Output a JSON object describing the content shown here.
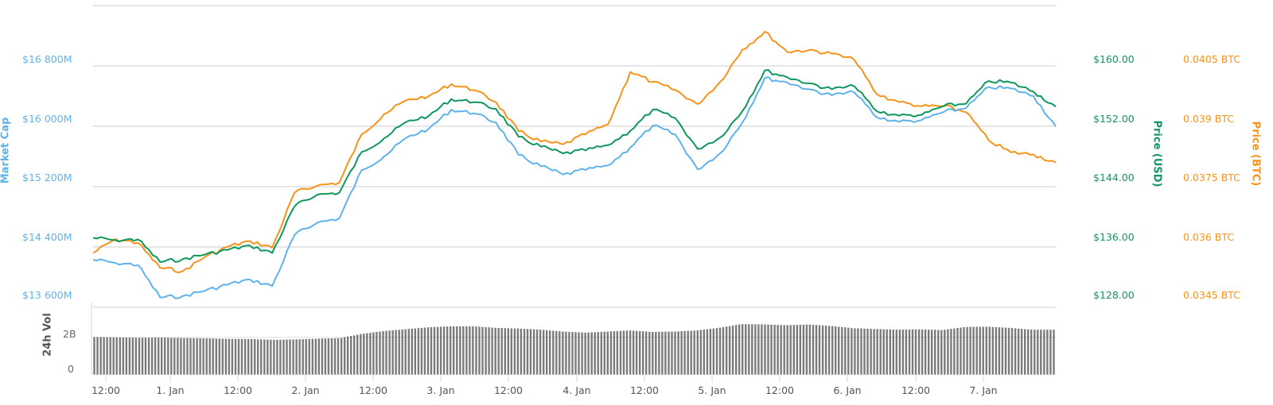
{
  "chart_data": {
    "type": "line",
    "title": "",
    "x_ticks": [
      "12:00",
      "1. Jan",
      "12:00",
      "2. Jan",
      "12:00",
      "3. Jan",
      "12:00",
      "4. Jan",
      "12:00",
      "5. Jan",
      "12:00",
      "6. Jan",
      "12:00",
      "7. Jan"
    ],
    "x": [
      "31 Dec 12:00",
      "31 Dec 16:00",
      "31 Dec 20:00",
      "1 Jan 00:00",
      "1 Jan 04:00",
      "1 Jan 08:00",
      "1 Jan 12:00",
      "1 Jan 16:00",
      "1 Jan 20:00",
      "2 Jan 00:00",
      "2 Jan 04:00",
      "2 Jan 08:00",
      "2 Jan 12:00",
      "2 Jan 16:00",
      "2 Jan 20:00",
      "3 Jan 00:00",
      "3 Jan 04:00",
      "3 Jan 08:00",
      "3 Jan 12:00",
      "3 Jan 16:00",
      "3 Jan 20:00",
      "4 Jan 00:00",
      "4 Jan 04:00",
      "4 Jan 08:00",
      "4 Jan 12:00",
      "4 Jan 16:00",
      "4 Jan 20:00",
      "5 Jan 00:00",
      "5 Jan 04:00",
      "5 Jan 08:00",
      "5 Jan 12:00",
      "5 Jan 16:00",
      "5 Jan 20:00",
      "6 Jan 00:00",
      "6 Jan 04:00",
      "6 Jan 08:00",
      "6 Jan 12:00",
      "6 Jan 16:00",
      "6 Jan 20:00",
      "7 Jan 00:00",
      "7 Jan 04:00",
      "7 Jan 08:00",
      "7 Jan 12:00",
      "7 Jan 16:00"
    ],
    "series": [
      {
        "name": "Market Cap",
        "axis": "left",
        "unit": "USD millions",
        "color": "#5fb3ea",
        "values": [
          14230,
          14190,
          14160,
          13730,
          13750,
          13820,
          13900,
          13970,
          13880,
          14560,
          14720,
          14780,
          15420,
          15600,
          15850,
          15970,
          16220,
          16170,
          16050,
          15620,
          15470,
          15360,
          15420,
          15480,
          15720,
          16010,
          15890,
          15430,
          15640,
          16050,
          16640,
          16580,
          16490,
          16410,
          16450,
          16120,
          16060,
          16080,
          16190,
          16240,
          16520,
          16500,
          16400,
          16000
        ]
      },
      {
        "name": "Price (USD)",
        "axis": "right1",
        "unit": "USD",
        "color": "#10975d",
        "values": [
          137.2,
          136.9,
          137.0,
          134.0,
          134.4,
          135.0,
          135.6,
          136.2,
          135.2,
          141.4,
          142.9,
          143.2,
          148.6,
          150.4,
          152.6,
          153.4,
          155.6,
          155.2,
          154.3,
          150.6,
          149.3,
          148.4,
          148.8,
          149.5,
          151.4,
          154.2,
          153.1,
          149.0,
          150.5,
          154.0,
          159.4,
          158.5,
          157.7,
          156.9,
          157.3,
          154.0,
          153.4,
          153.5,
          154.7,
          155.0,
          158.0,
          157.8,
          156.6,
          154.6
        ]
      },
      {
        "name": "Price (BTC)",
        "axis": "right2",
        "unit": "BTC",
        "color": "#f7931a",
        "values": [
          0.03585,
          0.0362,
          0.0361,
          0.03548,
          0.0354,
          0.03575,
          0.036,
          0.03615,
          0.03598,
          0.03735,
          0.03752,
          0.0376,
          0.0388,
          0.0393,
          0.03965,
          0.03975,
          0.04005,
          0.0399,
          0.0396,
          0.03888,
          0.03862,
          0.03855,
          0.0388,
          0.03905,
          0.04035,
          0.0401,
          0.0399,
          0.03955,
          0.0401,
          0.0409,
          0.04135,
          0.04085,
          0.0409,
          0.0408,
          0.04065,
          0.0398,
          0.0396,
          0.0395,
          0.0395,
          0.03935,
          0.03865,
          0.03835,
          0.0383,
          0.0381
        ]
      }
    ],
    "volume": {
      "name": "24h Vol",
      "unit": "USD",
      "color": "#7a7a7a",
      "values": [
        2.03,
        2.01,
        1.99,
        2.0,
        1.98,
        1.96,
        1.93,
        1.92,
        1.88,
        1.9,
        1.94,
        1.97,
        2.2,
        2.35,
        2.45,
        2.55,
        2.6,
        2.6,
        2.52,
        2.48,
        2.42,
        2.32,
        2.26,
        2.32,
        2.38,
        2.3,
        2.32,
        2.38,
        2.52,
        2.72,
        2.7,
        2.66,
        2.7,
        2.62,
        2.5,
        2.46,
        2.42,
        2.44,
        2.4,
        2.56,
        2.58,
        2.52,
        2.42,
        2.42
      ],
      "ylim": [
        0,
        3.6
      ]
    },
    "axes": {
      "left": {
        "title": "Market Cap",
        "ticks": [
          "$16 800M",
          "$16 000M",
          "$15 200M",
          "$14 400M",
          "$13 600M"
        ],
        "range": [
          13600,
          17600
        ]
      },
      "right1": {
        "title": "Price (USD)",
        "ticks": [
          "$160.00",
          "$152.00",
          "$144.00",
          "$136.00",
          "$128.00"
        ],
        "range": [
          128,
          168
        ]
      },
      "right2": {
        "title": "Price (BTC)",
        "ticks": [
          "0.0405 BTC",
          "0.039 BTC",
          "0.0375 BTC",
          "0.036 BTC",
          "0.0345 BTC"
        ],
        "range": [
          0.0345,
          0.0425
        ]
      },
      "volume": {
        "title": "24h Vol",
        "ticks": [
          "2B",
          "0"
        ]
      }
    },
    "grid": true,
    "legend": "none"
  },
  "labels": {
    "market_cap_title": "Market Cap",
    "usd_title": "Price (USD)",
    "btc_title": "Price (BTC)",
    "vol_title": "24h Vol",
    "mc_ticks": [
      "$16 800M",
      "$16 000M",
      "$15 200M",
      "$14 400M",
      "$13 600M"
    ],
    "usd_ticks": [
      "$160.00",
      "$152.00",
      "$144.00",
      "$136.00",
      "$128.00"
    ],
    "btc_ticks": [
      "0.0405 BTC",
      "0.039 BTC",
      "0.0375 BTC",
      "0.036 BTC",
      "0.0345 BTC"
    ],
    "vol_ticks": [
      "2B",
      "0"
    ],
    "x_ticks": [
      "12:00",
      "1. Jan",
      "12:00",
      "2. Jan",
      "12:00",
      "3. Jan",
      "12:00",
      "4. Jan",
      "12:00",
      "5. Jan",
      "12:00",
      "6. Jan",
      "12:00",
      "7. Jan"
    ]
  }
}
